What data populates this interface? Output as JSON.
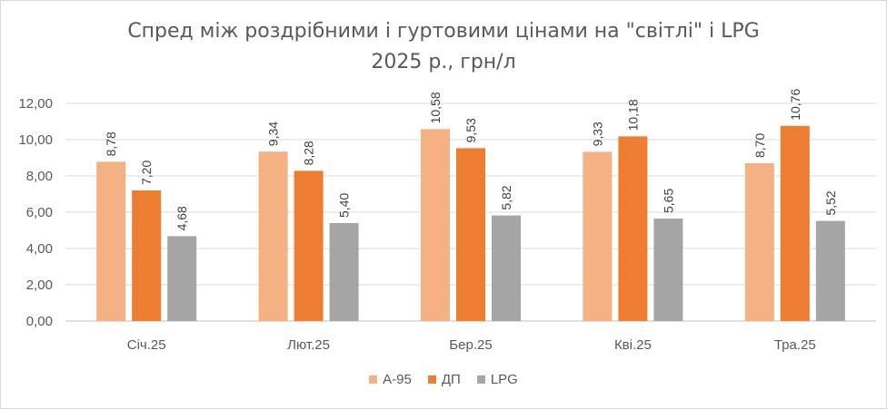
{
  "chart_data": {
    "type": "bar",
    "title": "Спред між роздрібними і гуртовими цінами на \"світлі\" і LPG",
    "subtitle": "2025 р., грн/л",
    "categories": [
      "Січ.25",
      "Лют.25",
      "Бер.25",
      "Кві.25",
      "Тра.25"
    ],
    "series": [
      {
        "name": "А-95",
        "color": "#f4b183",
        "values": [
          8.78,
          9.34,
          10.58,
          9.33,
          8.7
        ],
        "labels": [
          "8,78",
          "9,34",
          "10,58",
          "9,33",
          "8,70"
        ]
      },
      {
        "name": "ДП",
        "color": "#ed7d31",
        "values": [
          7.2,
          8.28,
          9.53,
          10.18,
          10.76
        ],
        "labels": [
          "7,20",
          "8,28",
          "9,53",
          "10,18",
          "10,76"
        ]
      },
      {
        "name": "LPG",
        "color": "#a5a5a5",
        "values": [
          4.68,
          5.4,
          5.82,
          5.65,
          5.52
        ],
        "labels": [
          "4,68",
          "5,40",
          "5,82",
          "5,65",
          "5,52"
        ]
      }
    ],
    "yticks": [
      "0,00",
      "2,00",
      "4,00",
      "6,00",
      "8,00",
      "10,00",
      "12,00"
    ],
    "ylim": [
      0,
      12
    ],
    "grid": true,
    "legend_position": "bottom"
  }
}
